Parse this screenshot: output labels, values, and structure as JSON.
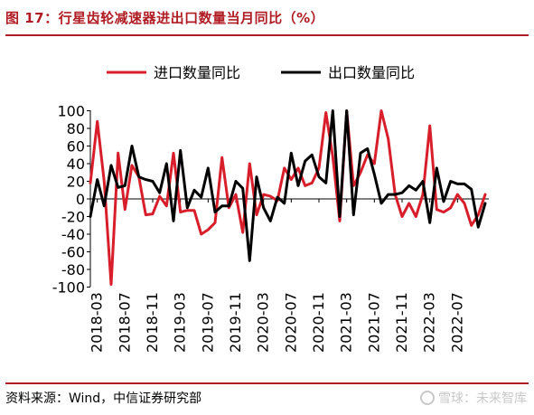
{
  "header": {
    "title": "图 17：行星齿轮减速器进出口数量当月同比（%）"
  },
  "footer": {
    "source": "资料来源：Wind，中信证券研究部",
    "watermark": "雪球：未来智库"
  },
  "chart_data": {
    "type": "line",
    "title": "",
    "xlabel": "",
    "ylabel": "",
    "ylim": [
      -100,
      100
    ],
    "yticks": [
      100,
      80,
      60,
      40,
      20,
      0,
      -20,
      -40,
      -60,
      -80,
      -100
    ],
    "xtick_labels": [
      "2018-03",
      "2018-07",
      "2018-11",
      "2019-03",
      "2019-07",
      "2019-11",
      "2020-03",
      "2020-07",
      "2020-11",
      "2021-03",
      "2021-07",
      "2021-11",
      "2022-03",
      "2022-07"
    ],
    "legend": "top",
    "categories": [
      "2018-02",
      "2018-03",
      "2018-04",
      "2018-05",
      "2018-06",
      "2018-07",
      "2018-08",
      "2018-09",
      "2018-10",
      "2018-11",
      "2018-12",
      "2019-01",
      "2019-02",
      "2019-03",
      "2019-04",
      "2019-05",
      "2019-06",
      "2019-07",
      "2019-08",
      "2019-09",
      "2019-10",
      "2019-11",
      "2019-12",
      "2020-01",
      "2020-02",
      "2020-03",
      "2020-04",
      "2020-05",
      "2020-06",
      "2020-07",
      "2020-08",
      "2020-09",
      "2020-10",
      "2020-11",
      "2020-12",
      "2021-01",
      "2021-02",
      "2021-03",
      "2021-04",
      "2021-05",
      "2021-06",
      "2021-07",
      "2021-08",
      "2021-09",
      "2021-10",
      "2021-11",
      "2021-12",
      "2022-01",
      "2022-02",
      "2022-03",
      "2022-04",
      "2022-05",
      "2022-06",
      "2022-07",
      "2022-08",
      "2022-09",
      "2022-10",
      "2022-11"
    ],
    "series": [
      {
        "name": "进口数量同比",
        "color": "#d81e2a",
        "values": [
          18,
          88,
          20,
          -97,
          52,
          -12,
          38,
          25,
          -18,
          -17,
          3,
          -8,
          52,
          -15,
          -13,
          -13,
          -40,
          -35,
          -27,
          47,
          -10,
          5,
          -38,
          40,
          -18,
          5,
          3,
          -2,
          35,
          22,
          35,
          15,
          18,
          35,
          98,
          48,
          -25,
          100,
          15,
          30,
          50,
          40,
          100,
          68,
          5,
          -20,
          -5,
          -20,
          5,
          83,
          -12,
          -15,
          -10,
          5,
          -5,
          -30,
          -18,
          5
        ]
      },
      {
        "name": "出口数量同比",
        "color": "#000000",
        "values": [
          -20,
          22,
          -8,
          38,
          13,
          15,
          60,
          25,
          22,
          20,
          7,
          40,
          -25,
          55,
          -10,
          10,
          2,
          35,
          -15,
          -8,
          -8,
          20,
          12,
          -70,
          25,
          -10,
          -25,
          2,
          -5,
          52,
          15,
          43,
          50,
          25,
          18,
          100,
          -20,
          100,
          -18,
          52,
          57,
          28,
          -5,
          5,
          5,
          7,
          15,
          10,
          20,
          -27,
          35,
          -3,
          20,
          17,
          17,
          11,
          -32,
          -5
        ]
      }
    ]
  }
}
